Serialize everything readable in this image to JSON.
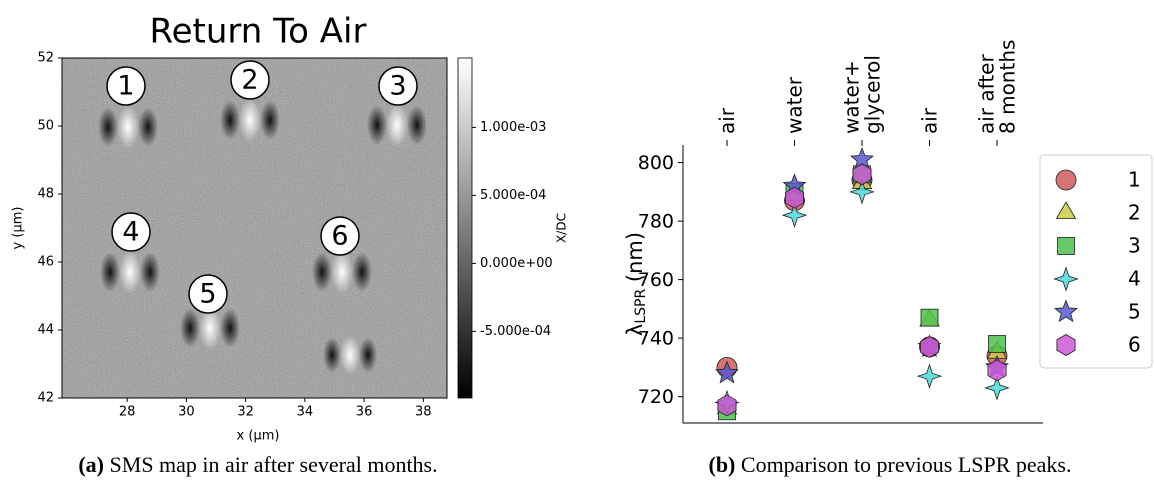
{
  "chart_data": [
    {
      "type": "heatmap",
      "title": "Return To Air",
      "xlabel": "x (µm)",
      "ylabel": "y (µm)",
      "xlim": [
        25.8,
        38.8
      ],
      "xticks": [
        28,
        30,
        32,
        34,
        36,
        38
      ],
      "ylim": [
        42,
        52
      ],
      "yticks": [
        42,
        44,
        46,
        48,
        50,
        52
      ],
      "colorbar": {
        "label": "X/DC",
        "lim": [
          -0.00099,
          0.00151
        ],
        "ticks": [
          {
            "value": 0.001,
            "label": "1.000e-03"
          },
          {
            "value": 0.0005,
            "label": "5.000e-04"
          },
          {
            "value": 0,
            "label": "0.000e+00"
          },
          {
            "value": -0.0005,
            "label": "-5.000e-04"
          }
        ]
      },
      "spot_labels": [
        "1",
        "2",
        "3",
        "4",
        "5",
        "6"
      ]
    },
    {
      "type": "scatter",
      "categories": [
        "air",
        "water",
        "water+\nglycerol",
        "air",
        "air after\n8 months"
      ],
      "ylabel": {
        "symbol": "λ",
        "subscript": "LSPR",
        "unit": "(nm)"
      },
      "ylim": [
        711,
        806
      ],
      "yticks": [
        720,
        740,
        760,
        780,
        800
      ],
      "legend": "upper right",
      "series": [
        {
          "name": "1",
          "color": "#d05a5a",
          "marker": "circle",
          "values": [
            730,
            787,
            794,
            737,
            734
          ]
        },
        {
          "name": "2",
          "color": "#cdcd45",
          "marker": "triangle",
          "values": [
            716,
            789,
            793,
            746,
            735
          ]
        },
        {
          "name": "3",
          "color": "#4cbf4c",
          "marker": "square",
          "values": [
            715,
            790,
            796,
            747,
            738
          ]
        },
        {
          "name": "4",
          "color": "#4dd9d9",
          "marker": "star4",
          "values": [
            718,
            782,
            790,
            727,
            723
          ]
        },
        {
          "name": "5",
          "color": "#5858cc",
          "marker": "star5",
          "values": [
            728,
            792,
            801,
            737,
            730
          ]
        },
        {
          "name": "6",
          "color": "#cc58d6",
          "marker": "hexagon",
          "values": [
            717,
            788,
            796,
            737,
            729
          ]
        }
      ]
    }
  ],
  "captions": [
    {
      "tag": "(a)",
      "text": "SMS map in air after several months."
    },
    {
      "tag": "(b)",
      "text": "Comparison to previous LSPR peaks."
    }
  ]
}
